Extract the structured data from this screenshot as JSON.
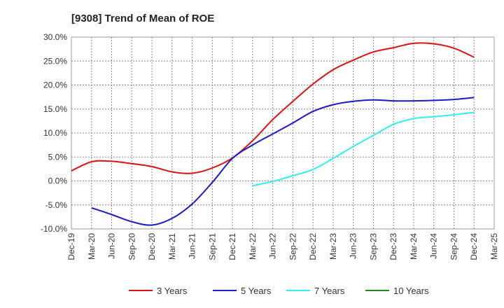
{
  "chart_data": {
    "type": "line",
    "title": "[9308]  Trend of Mean of ROE",
    "xlabel": "",
    "ylabel": "",
    "x_ticks": [
      "Dec-19",
      "Mar-20",
      "Jun-20",
      "Sep-20",
      "Dec-20",
      "Mar-21",
      "Jun-21",
      "Sep-21",
      "Dec-21",
      "Mar-22",
      "Jun-22",
      "Sep-22",
      "Dec-22",
      "Mar-23",
      "Jun-23",
      "Sep-23",
      "Dec-23",
      "Mar-24",
      "Jun-24",
      "Sep-24",
      "Dec-24",
      "Mar-25"
    ],
    "y_ticks": [
      "30.0%",
      "25.0%",
      "20.0%",
      "15.0%",
      "10.0%",
      "5.0%",
      "0.0%",
      "-5.0%",
      "-10.0%"
    ],
    "ylim": [
      -10,
      30
    ],
    "grid": true,
    "legend_position": "bottom",
    "series": [
      {
        "name": "3 Years",
        "color": "#dd1111",
        "x": [
          "Dec-19",
          "Mar-20",
          "Jun-20",
          "Sep-20",
          "Dec-20",
          "Mar-21",
          "Jun-21",
          "Sep-21",
          "Dec-21",
          "Mar-22",
          "Jun-22",
          "Sep-22",
          "Dec-22",
          "Mar-23",
          "Jun-23",
          "Sep-23",
          "Dec-23",
          "Mar-24",
          "Jun-24",
          "Sep-24",
          "Dec-24"
        ],
        "values": [
          2.1,
          4.0,
          4.1,
          3.6,
          3.0,
          1.9,
          1.6,
          2.7,
          4.8,
          8.4,
          12.8,
          16.6,
          20.2,
          23.2,
          25.2,
          26.9,
          27.8,
          28.7,
          28.6,
          27.7,
          25.8
        ]
      },
      {
        "name": "5 Years",
        "color": "#1a1acc",
        "x": [
          "Mar-20",
          "Jun-20",
          "Sep-20",
          "Dec-20",
          "Mar-21",
          "Jun-21",
          "Sep-21",
          "Dec-21",
          "Mar-22",
          "Jun-22",
          "Sep-22",
          "Dec-22",
          "Mar-23",
          "Jun-23",
          "Sep-23",
          "Dec-23",
          "Mar-24",
          "Jun-24",
          "Sep-24",
          "Dec-24"
        ],
        "values": [
          -5.6,
          -7.0,
          -8.5,
          -9.2,
          -7.8,
          -4.8,
          -0.3,
          4.7,
          7.5,
          9.8,
          12.1,
          14.5,
          15.9,
          16.6,
          16.9,
          16.7,
          16.7,
          16.8,
          17.0,
          17.4
        ]
      },
      {
        "name": "7 Years",
        "color": "#33eeee",
        "x": [
          "Mar-22",
          "Jun-22",
          "Sep-22",
          "Dec-22",
          "Mar-23",
          "Jun-23",
          "Sep-23",
          "Dec-23",
          "Mar-24",
          "Jun-24",
          "Sep-24",
          "Dec-24"
        ],
        "values": [
          -1.0,
          -0.1,
          1.1,
          2.4,
          4.7,
          7.2,
          9.5,
          11.8,
          13.0,
          13.4,
          13.8,
          14.3
        ]
      },
      {
        "name": "10 Years",
        "color": "#228822",
        "x": [],
        "values": []
      }
    ]
  }
}
